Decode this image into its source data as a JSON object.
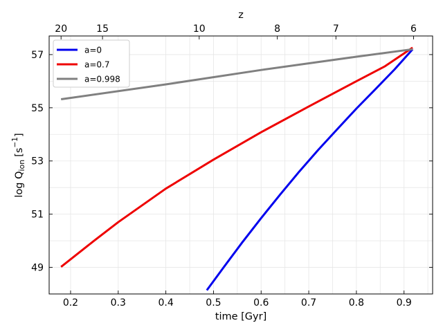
{
  "chart_data": {
    "type": "line",
    "xlabel": "time [Gyr]",
    "ylabel_main": "log Q",
    "ylabel_sub": "ion",
    "ylabel_unit": "[s",
    "ylabel_exp": "−1",
    "ylabel_close": "]",
    "top_xlabel": "z",
    "xlim": [
      0.155,
      0.96
    ],
    "ylim": [
      48.0,
      57.7
    ],
    "x_ticks": [
      0.2,
      0.3,
      0.4,
      0.5,
      0.6,
      0.7,
      0.8,
      0.9
    ],
    "x_tick_labels": [
      "0.2",
      "0.3",
      "0.4",
      "0.5",
      "0.6",
      "0.7",
      "0.8",
      "0.9"
    ],
    "y_ticks": [
      49,
      51,
      53,
      55,
      57
    ],
    "y_tick_labels": [
      "49",
      "51",
      "53",
      "55",
      "57"
    ],
    "top_ticks": [
      {
        "t": 0.18,
        "label": "20"
      },
      {
        "t": 0.267,
        "label": "15"
      },
      {
        "t": 0.47,
        "label": "10"
      },
      {
        "t": 0.634,
        "label": "8"
      },
      {
        "t": 0.757,
        "label": "7"
      },
      {
        "t": 0.92,
        "label": "6"
      }
    ],
    "grid": true,
    "legend_position": "top-left",
    "series": [
      {
        "name": "a=0",
        "color": "#0000ee",
        "x": [
          0.486,
          0.52,
          0.56,
          0.6,
          0.64,
          0.68,
          0.72,
          0.76,
          0.8,
          0.84,
          0.88,
          0.918
        ],
        "y": [
          48.14,
          48.97,
          49.93,
          50.85,
          51.74,
          52.6,
          53.42,
          54.2,
          54.97,
          55.7,
          56.44,
          57.2
        ]
      },
      {
        "name": "a=0.7",
        "color": "#ee0000",
        "x": [
          0.18,
          0.25,
          0.3,
          0.4,
          0.5,
          0.6,
          0.7,
          0.8,
          0.86,
          0.918
        ],
        "y": [
          49.02,
          50.01,
          50.7,
          51.96,
          53.05,
          54.08,
          55.05,
          56.0,
          56.56,
          57.26
        ]
      },
      {
        "name": "a=0.998",
        "color": "#808080",
        "x": [
          0.18,
          0.4,
          0.6,
          0.8,
          0.918
        ],
        "y": [
          55.32,
          55.88,
          56.42,
          56.92,
          57.2
        ]
      }
    ]
  }
}
